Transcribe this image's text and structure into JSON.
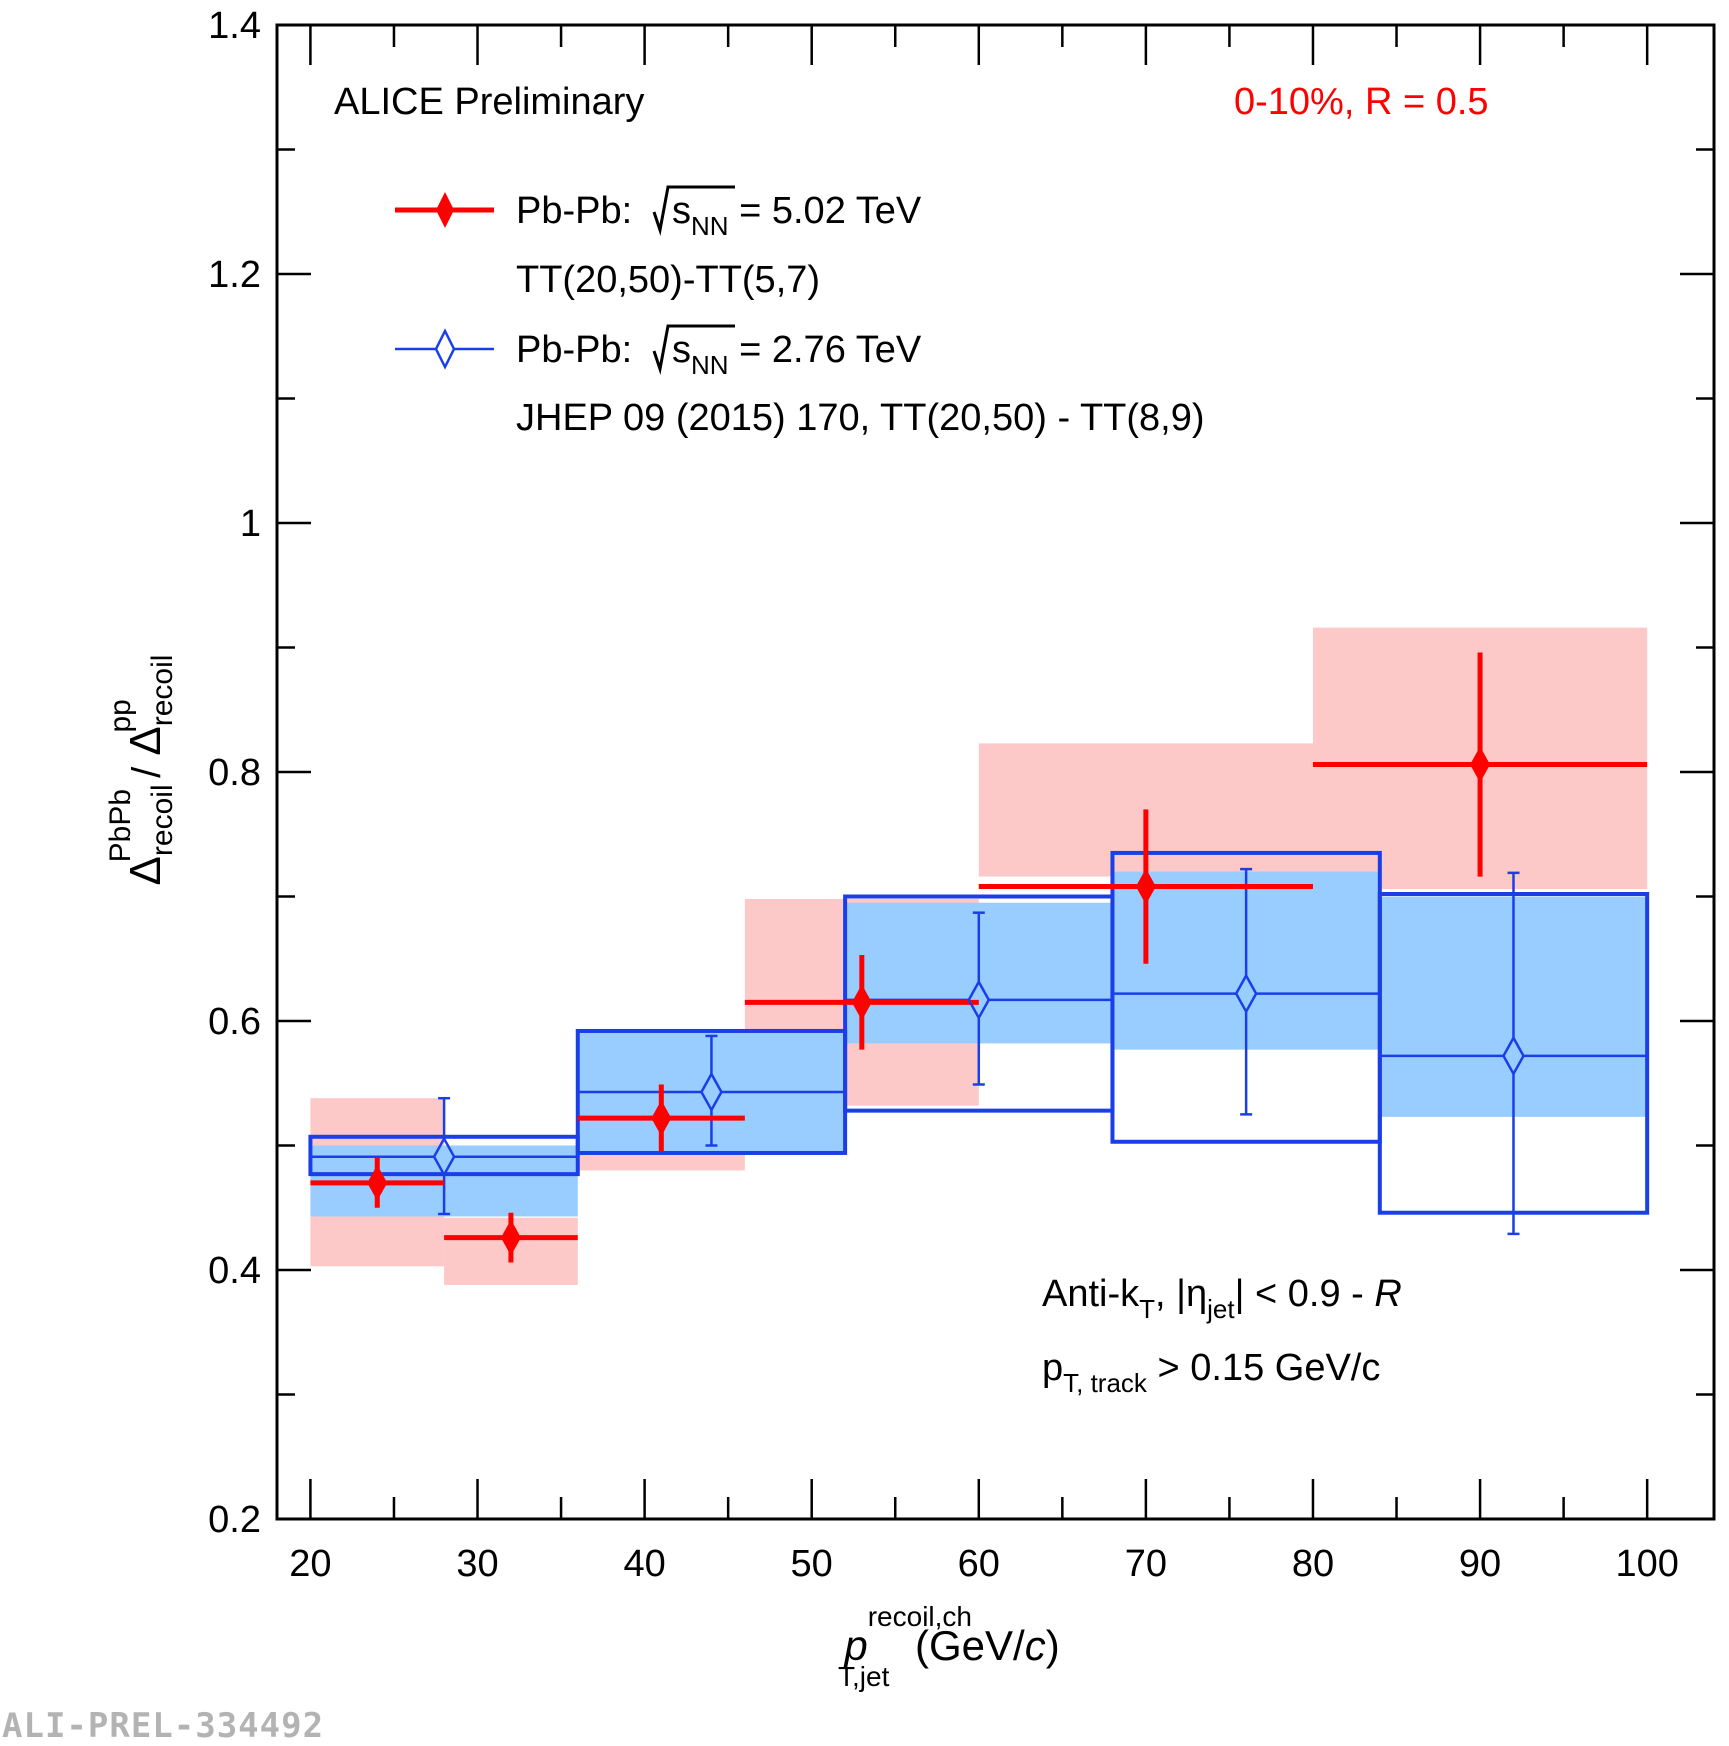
{
  "chart_data": {
    "type": "scatter",
    "title": "",
    "xlabel": {
      "base": "p",
      "sub": "T,jet",
      "sup": "recoil,ch",
      "unit_pre": " (GeV/",
      "unit_italic": "c",
      "unit_post": ")"
    },
    "ylabel": {
      "num_sym": "Δ",
      "num_sub": "recoil",
      "num_sup": "PbPb",
      "slash": " / ",
      "den_sym": "Δ",
      "den_sub": "recoil",
      "den_sup": "pp"
    },
    "xlim": [
      18,
      104
    ],
    "ylim": [
      0.2,
      1.4
    ],
    "x_ticks": [
      20,
      30,
      40,
      50,
      60,
      70,
      80,
      90,
      100
    ],
    "x_tick_labels": [
      "20",
      "30",
      "40",
      "50",
      "60",
      "70",
      "80",
      "90",
      "100"
    ],
    "y_ticks": [
      0.2,
      0.4,
      0.6,
      0.8,
      1.0,
      1.2,
      1.4
    ],
    "y_tick_labels": [
      "0.2",
      "0.4",
      "0.6",
      "0.8",
      "1",
      "1.2",
      "1.4"
    ],
    "x_minor_step": 5,
    "y_minor_step": 0.1,
    "series": [
      {
        "name": "Pb-Pb 5.02 TeV",
        "color": "#ff0000",
        "syst_color": "#fcc8c8",
        "marker": "filled-diamond",
        "points": [
          {
            "x": 24,
            "xlo": 20,
            "xhi": 28,
            "y": 0.47,
            "stat": 0.02,
            "syst_lo": 0.403,
            "syst_hi": 0.538
          },
          {
            "x": 32,
            "xlo": 28,
            "xhi": 36,
            "y": 0.426,
            "stat": 0.02,
            "syst_lo": 0.388,
            "syst_hi": 0.442
          },
          {
            "x": 41,
            "xlo": 36,
            "xhi": 46,
            "y": 0.522,
            "stat": 0.027,
            "syst_lo": 0.48,
            "syst_hi": 0.498
          },
          {
            "x": 53,
            "xlo": 46,
            "xhi": 60,
            "y": 0.615,
            "stat": 0.038,
            "syst_lo": 0.532,
            "syst_hi": 0.698
          },
          {
            "x": 70,
            "xlo": 60,
            "xhi": 80,
            "y": 0.708,
            "stat": 0.062,
            "syst_lo": 0.716,
            "syst_hi": 0.823
          },
          {
            "x": 90,
            "xlo": 80,
            "xhi": 100,
            "y": 0.806,
            "stat": 0.09,
            "syst_lo": 0.706,
            "syst_hi": 0.916
          }
        ]
      },
      {
        "name": "Pb-Pb 2.76 TeV",
        "color": "#1a3fe8",
        "syst_color": "#99ccff",
        "marker": "open-diamond",
        "points": [
          {
            "x": 28,
            "xlo": 20,
            "xhi": 36,
            "y": 0.491,
            "stat_lo": 0.046,
            "stat_hi": 0.047,
            "box_lo": 0.477,
            "box_hi": 0.507,
            "fill_lo": 0.443,
            "fill_hi": 0.5
          },
          {
            "x": 44,
            "xlo": 36,
            "xhi": 52,
            "y": 0.543,
            "stat_lo": 0.043,
            "stat_hi": 0.045,
            "box_lo": 0.494,
            "box_hi": 0.592,
            "fill_lo": 0.494,
            "fill_hi": 0.592
          },
          {
            "x": 60,
            "xlo": 52,
            "xhi": 68,
            "y": 0.617,
            "stat_lo": 0.068,
            "stat_hi": 0.07,
            "box_lo": 0.528,
            "box_hi": 0.7,
            "fill_lo": 0.582,
            "fill_hi": 0.695
          },
          {
            "x": 76,
            "xlo": 68,
            "xhi": 84,
            "y": 0.622,
            "stat_lo": 0.097,
            "stat_hi": 0.1,
            "box_lo": 0.503,
            "box_hi": 0.735,
            "fill_lo": 0.577,
            "fill_hi": 0.72
          },
          {
            "x": 92,
            "xlo": 84,
            "xhi": 100,
            "y": 0.572,
            "stat_lo": 0.143,
            "stat_hi": 0.147,
            "box_lo": 0.446,
            "box_hi": 0.702,
            "fill_lo": 0.523,
            "fill_hi": 0.7
          }
        ]
      }
    ],
    "annotations": {
      "experiment": "ALICE Preliminary",
      "centrality": "0-10%, R = 0.5",
      "centrality_color": "#ff0000",
      "legend": [
        {
          "prefix": "Pb-Pb: ",
          "root": "s",
          "root_sub": "NN",
          "suffix": " = 5.02 TeV",
          "line2": "TT(20,50)-TT(5,7)"
        },
        {
          "prefix": "Pb-Pb: ",
          "root": "s",
          "root_sub": "NN",
          "suffix": " = 2.76 TeV",
          "line2": "JHEP 09 (2015) 170, TT(20,50) - TT(8,9)"
        }
      ],
      "jet_def": {
        "a": "Anti-k",
        "a_sub": "T",
        "b": ", |η",
        "b_sub": "jet",
        "c": "| < 0.9 - ",
        "c_ital": "R"
      },
      "track_cut": {
        "a": "p",
        "a_sub": "T, track",
        "b": " > 0.15 GeV/c"
      }
    }
  },
  "footer": "ALI-PREL-334492"
}
